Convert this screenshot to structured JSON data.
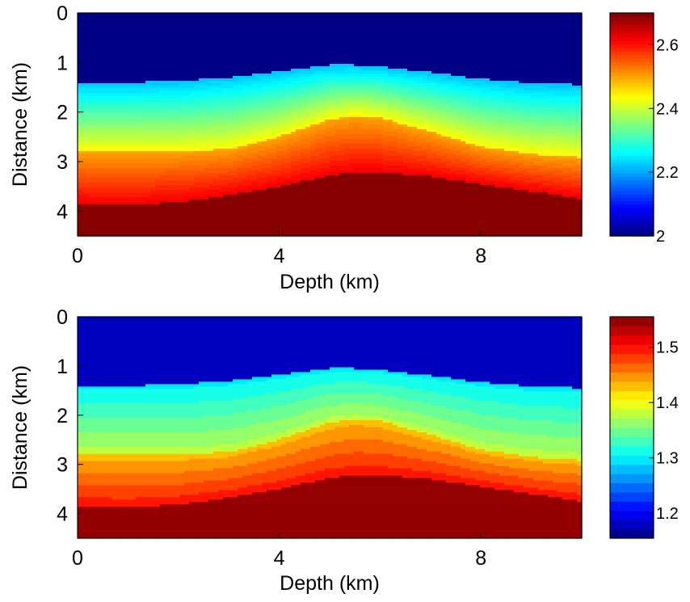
{
  "chart_data": [
    {
      "type": "heatmap",
      "xlabel": "Depth (km)",
      "ylabel": "Distance (km)",
      "xlim": [
        0,
        10
      ],
      "ylim": [
        4.5,
        0
      ],
      "y_reversed": true,
      "xticks": [
        0,
        4,
        8
      ],
      "xtick_labels": [
        "0",
        "4",
        "8"
      ],
      "yticks": [
        0,
        1,
        2,
        3,
        4
      ],
      "ytick_labels": [
        "0",
        "1",
        "2",
        "3",
        "4"
      ],
      "colormap": "jet",
      "color_levels": 64,
      "colorbar": {
        "range": [
          2.0,
          2.7
        ],
        "ticks": [
          2.0,
          2.2,
          2.4,
          2.6
        ],
        "tick_labels": [
          "2",
          "2.2",
          "2.4",
          "2.6"
        ]
      },
      "layers": {
        "x": [
          0,
          1,
          2,
          3,
          4,
          5,
          5.5,
          6,
          7,
          8,
          9,
          10
        ],
        "interface_1_depth": [
          1.4,
          1.4,
          1.38,
          1.3,
          1.18,
          1.05,
          1.05,
          1.08,
          1.2,
          1.33,
          1.42,
          1.45
        ],
        "interface_2_depth": [
          2.8,
          2.8,
          2.8,
          2.75,
          2.5,
          2.15,
          2.08,
          2.12,
          2.4,
          2.7,
          2.85,
          2.92
        ],
        "interface_3_depth": [
          3.85,
          3.88,
          3.82,
          3.68,
          3.5,
          3.28,
          3.22,
          3.22,
          3.3,
          3.45,
          3.6,
          3.75
        ],
        "top_layer_value": 2.0,
        "layer_1_top_value": 2.22,
        "layer_1_bottom_value": 2.44,
        "layer_2_top_value": 2.5,
        "layer_2_bottom_value": 2.62,
        "bottom_layer_value": 2.7
      }
    },
    {
      "type": "heatmap",
      "xlabel": "Depth (km)",
      "ylabel": "Distance (km)",
      "xlim": [
        0,
        10
      ],
      "ylim": [
        4.5,
        0
      ],
      "y_reversed": true,
      "xticks": [
        0,
        4,
        8
      ],
      "xtick_labels": [
        "0",
        "4",
        "8"
      ],
      "yticks": [
        0,
        1,
        2,
        3,
        4
      ],
      "ytick_labels": [
        "0",
        "1",
        "2",
        "3",
        "4"
      ],
      "colormap": "jet",
      "color_levels": 24,
      "colorbar": {
        "range": [
          1.155,
          1.555
        ],
        "ticks": [
          1.2,
          1.3,
          1.4,
          1.5
        ],
        "tick_labels": [
          "1.2",
          "1.3",
          "1.4",
          "1.5"
        ]
      },
      "layers": {
        "x": [
          0,
          1,
          2,
          3,
          4,
          5,
          5.5,
          6,
          7,
          8,
          9,
          10
        ],
        "interface_1_depth": [
          1.4,
          1.4,
          1.38,
          1.3,
          1.18,
          1.05,
          1.05,
          1.08,
          1.2,
          1.33,
          1.42,
          1.45
        ],
        "interface_2_depth": [
          2.8,
          2.8,
          2.8,
          2.75,
          2.5,
          2.15,
          2.08,
          2.12,
          2.4,
          2.7,
          2.85,
          2.92
        ],
        "interface_3_depth": [
          3.85,
          3.88,
          3.82,
          3.68,
          3.5,
          3.28,
          3.22,
          3.22,
          3.3,
          3.45,
          3.6,
          3.75
        ],
        "top_layer_value": 1.18,
        "layer_1_top_value": 1.3,
        "layer_1_bottom_value": 1.38,
        "layer_2_top_value": 1.43,
        "layer_2_bottom_value": 1.5,
        "bottom_layer_value": 1.55
      }
    }
  ]
}
